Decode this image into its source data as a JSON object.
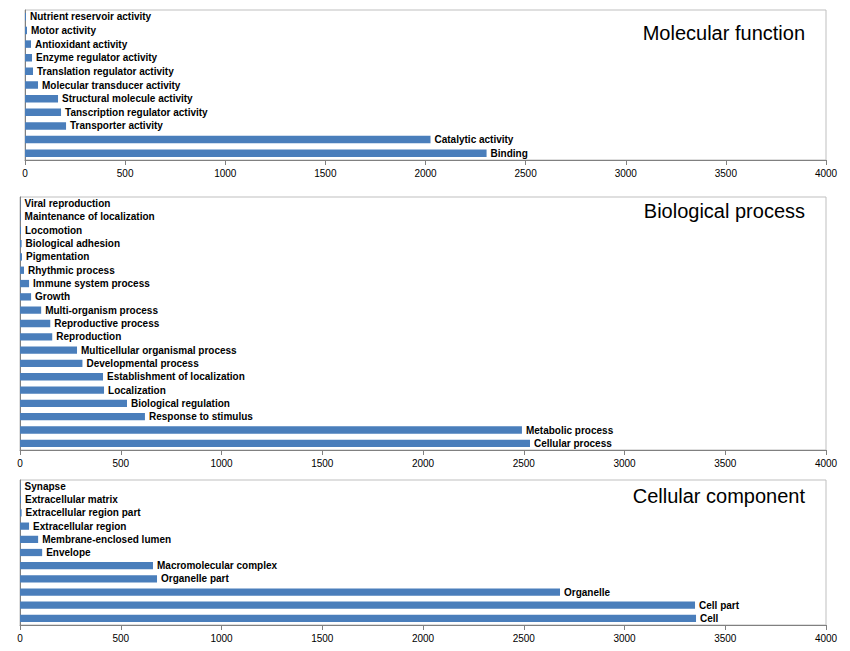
{
  "chart_data": [
    {
      "type": "bar",
      "title": "Molecular function",
      "orientation": "horizontal",
      "categories": [
        "Nutrient reservoir activity",
        "Motor activity",
        "Antioxidant activity",
        "Enzyme regulator activity",
        "Translation regulator activity",
        "Molecular transducer activity",
        "Structural molecule activity",
        "Tanscription regulator activity",
        "Transporter activity",
        "Catalytic activity",
        "Binding"
      ],
      "values": [
        5,
        10,
        30,
        35,
        40,
        65,
        165,
        180,
        205,
        2025,
        2305
      ],
      "color": "#4a7ebb",
      "xlim": [
        0,
        4000
      ],
      "xticks": [
        0,
        500,
        1000,
        1500,
        2000,
        2500,
        3000,
        3500,
        4000
      ],
      "grid": false,
      "tick_labels": "x"
    },
    {
      "type": "bar",
      "title": "Biological process",
      "orientation": "horizontal",
      "categories": [
        "Viral reproduction",
        "Maintenance of localization",
        "Locomotion",
        "Biological adhesion",
        "Pigmentation",
        "Rhythmic process",
        "Immune system process",
        "Growth",
        "Multi-organism process",
        "Reproductive process",
        "Reproduction",
        "Multicellular organismal process",
        "Developmental process",
        "Establishment of localization",
        "Localization",
        "Biological regulation",
        "Response to stimulus",
        "Metabolic process",
        "Cellular process"
      ],
      "values": [
        2,
        3,
        5,
        8,
        10,
        20,
        45,
        55,
        105,
        150,
        160,
        283,
        310,
        412,
        417,
        531,
        620,
        2491,
        2531
      ],
      "color": "#4a7ebb",
      "xlim": [
        0,
        4000
      ],
      "xticks": [
        0,
        500,
        1000,
        1500,
        2000,
        2500,
        3000,
        3500,
        4000
      ],
      "grid": false,
      "tick_labels": "x"
    },
    {
      "type": "bar",
      "title": "Cellular component",
      "orientation": "horizontal",
      "categories": [
        "Synapse",
        "Extracellular matrix",
        "Extracellular region part",
        "Extracellular region",
        "Membrane-enclosed lumen",
        "Envelope",
        "Macromolecular complex",
        "Organelle part",
        "Organelle",
        "Cell part",
        "Cell"
      ],
      "values": [
        3,
        5,
        8,
        45,
        90,
        110,
        660,
        680,
        2680,
        3350,
        3355
      ],
      "color": "#4a7ebb",
      "xlim": [
        0,
        4000
      ],
      "xticks": [
        0,
        500,
        1000,
        1500,
        2000,
        2500,
        3000,
        3500,
        4000
      ],
      "grid": false,
      "tick_labels": "x"
    }
  ]
}
